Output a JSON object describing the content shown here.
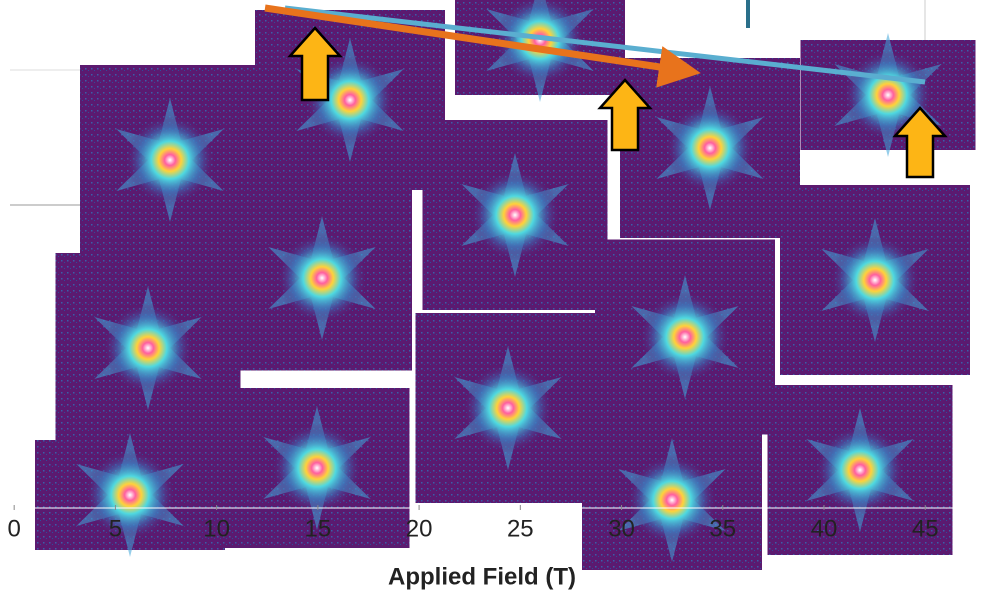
{
  "chart_data": {
    "type": "collage",
    "x_label": "Applied Field (T)",
    "xlim": [
      -0.7,
      48.1
    ],
    "xticks": [
      0,
      5,
      10,
      15,
      20,
      25,
      30,
      35,
      40,
      45
    ]
  }
}
